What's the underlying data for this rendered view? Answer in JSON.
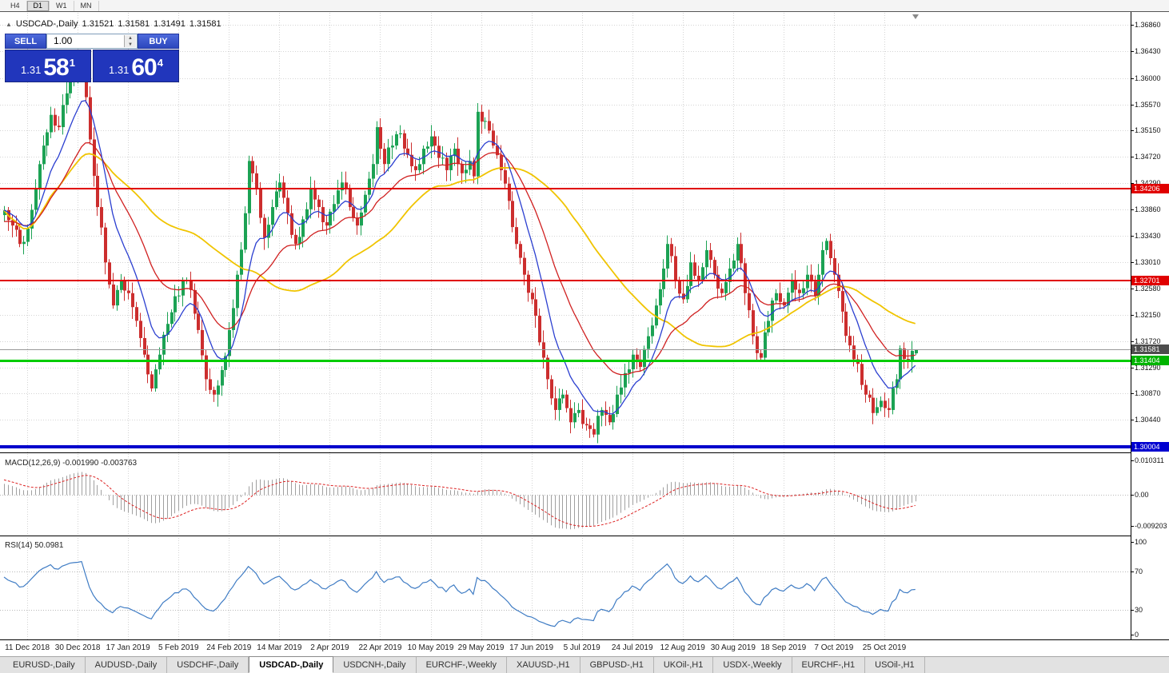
{
  "toolbar": {
    "timeframes": [
      "H4",
      "D1",
      "W1",
      "MN"
    ],
    "active": "D1"
  },
  "chart_header": {
    "collapse_icon": "▲",
    "symbol": "USDCAD-,Daily",
    "open": "1.31521",
    "high": "1.31581",
    "low": "1.31491",
    "close": "1.31581"
  },
  "trade_panel": {
    "sell_label": "SELL",
    "buy_label": "BUY",
    "volume": "1.00",
    "sell_price": {
      "base": "1.31",
      "big": "58",
      "sup": "1"
    },
    "buy_price": {
      "base": "1.31",
      "big": "60",
      "sup": "4"
    }
  },
  "price_scale": {
    "ticks": [
      "1.36860",
      "1.36430",
      "1.36000",
      "1.35570",
      "1.35150",
      "1.34720",
      "1.34290",
      "1.33860",
      "1.33430",
      "1.33010",
      "1.32580",
      "1.32150",
      "1.31720",
      "1.31290",
      "1.30870",
      "1.30440"
    ],
    "badges": [
      {
        "text": "1.34206",
        "value": 1.34206,
        "bg": "#e00000",
        "fg": "#ffffff"
      },
      {
        "text": "1.32701",
        "value": 1.32701,
        "bg": "#e00000",
        "fg": "#ffffff"
      },
      {
        "text": "1.31581",
        "value": 1.31581,
        "bg": "#4d4d4d",
        "fg": "#ffffff"
      },
      {
        "text": "1.31404",
        "value": 1.31404,
        "bg": "#00b400",
        "fg": "#ffffff"
      },
      {
        "text": "1.30004",
        "value": 1.30004,
        "bg": "#0000d0",
        "fg": "#ffffff"
      }
    ]
  },
  "macd": {
    "label": "MACD(12,26,9) -0.001990 -0.003763",
    "params": [
      12,
      26,
      9
    ],
    "value": "-0.001990",
    "signal_value": "-0.003763",
    "axis": [
      {
        "text": "0.010311",
        "value": 0.010311
      },
      {
        "text": "0.00",
        "value": 0
      },
      {
        "text": "-0.009203",
        "value": -0.009203
      }
    ]
  },
  "rsi": {
    "label": "RSI(14) 50.0981",
    "period": 14,
    "value": "50.0981",
    "levels": [
      70,
      30
    ],
    "axis": [
      {
        "text": "100",
        "value": 100
      },
      {
        "text": "70",
        "value": 70
      },
      {
        "text": "30",
        "value": 30
      },
      {
        "text": "0",
        "value": 0
      }
    ]
  },
  "chart_data": {
    "type": "candlestick",
    "symbol": "USDCAD",
    "timeframe": "Daily",
    "ohlc_display": {
      "open": 1.31521,
      "high": 1.31581,
      "low": 1.31491,
      "close": 1.31581
    },
    "y_range": [
      1.2991,
      1.3706
    ],
    "y_ticks": [
      1.3686,
      1.3643,
      1.36,
      1.3557,
      1.3515,
      1.3472,
      1.3429,
      1.3386,
      1.3343,
      1.3301,
      1.3258,
      1.3215,
      1.3172,
      1.3129,
      1.3087,
      1.3044
    ],
    "candle_count": 236,
    "price_anchors": [
      [
        0,
        1.3385
      ],
      [
        2,
        1.336
      ],
      [
        4,
        1.333
      ],
      [
        6,
        1.3355
      ],
      [
        8,
        1.342
      ],
      [
        10,
        1.349
      ],
      [
        12,
        1.354
      ],
      [
        14,
        1.352
      ],
      [
        16,
        1.3575
      ],
      [
        18,
        1.3605
      ],
      [
        20,
        1.362
      ],
      [
        22,
        1.35
      ],
      [
        24,
        1.339
      ],
      [
        26,
        1.33
      ],
      [
        28,
        1.323
      ],
      [
        30,
        1.327
      ],
      [
        32,
        1.325
      ],
      [
        34,
        1.3205
      ],
      [
        36,
        1.315
      ],
      [
        38,
        1.3095
      ],
      [
        40,
        1.315
      ],
      [
        42,
        1.32
      ],
      [
        44,
        1.3245
      ],
      [
        46,
        1.327
      ],
      [
        48,
        1.3255
      ],
      [
        50,
        1.319
      ],
      [
        52,
        1.311
      ],
      [
        54,
        1.3085
      ],
      [
        56,
        1.3125
      ],
      [
        58,
        1.319
      ],
      [
        60,
        1.328
      ],
      [
        62,
        1.338
      ],
      [
        63,
        1.3465
      ],
      [
        65,
        1.342
      ],
      [
        67,
        1.334
      ],
      [
        69,
        1.339
      ],
      [
        71,
        1.343
      ],
      [
        73,
        1.338
      ],
      [
        75,
        1.333
      ],
      [
        77,
        1.337
      ],
      [
        79,
        1.342
      ],
      [
        81,
        1.339
      ],
      [
        83,
        1.336
      ],
      [
        85,
        1.3395
      ],
      [
        87,
        1.343
      ],
      [
        89,
        1.339
      ],
      [
        91,
        1.336
      ],
      [
        93,
        1.341
      ],
      [
        95,
        1.346
      ],
      [
        96,
        1.352
      ],
      [
        98,
        1.346
      ],
      [
        100,
        1.349
      ],
      [
        102,
        1.351
      ],
      [
        104,
        1.3475
      ],
      [
        106,
        1.345
      ],
      [
        108,
        1.3485
      ],
      [
        110,
        1.3505
      ],
      [
        112,
        1.347
      ],
      [
        114,
        1.345
      ],
      [
        116,
        1.3485
      ],
      [
        118,
        1.3445
      ],
      [
        120,
        1.3465
      ],
      [
        121,
        1.344
      ],
      [
        122,
        1.3545
      ],
      [
        124,
        1.353
      ],
      [
        126,
        1.349
      ],
      [
        128,
        1.345
      ],
      [
        130,
        1.34
      ],
      [
        132,
        1.333
      ],
      [
        134,
        1.328
      ],
      [
        136,
        1.324
      ],
      [
        138,
        1.317
      ],
      [
        140,
        1.311
      ],
      [
        142,
        1.306
      ],
      [
        144,
        1.3085
      ],
      [
        146,
        1.304
      ],
      [
        148,
        1.306
      ],
      [
        150,
        1.3035
      ],
      [
        152,
        1.302
      ],
      [
        154,
        1.306
      ],
      [
        156,
        1.304
      ],
      [
        158,
        1.3085
      ],
      [
        160,
        1.312
      ],
      [
        162,
        1.315
      ],
      [
        164,
        1.313
      ],
      [
        166,
        1.318
      ],
      [
        168,
        1.323
      ],
      [
        170,
        1.329
      ],
      [
        171,
        1.333
      ],
      [
        173,
        1.327
      ],
      [
        175,
        1.324
      ],
      [
        177,
        1.33
      ],
      [
        179,
        1.327
      ],
      [
        181,
        1.332
      ],
      [
        183,
        1.328
      ],
      [
        185,
        1.325
      ],
      [
        187,
        1.329
      ],
      [
        189,
        1.333
      ],
      [
        191,
        1.325
      ],
      [
        193,
        1.318
      ],
      [
        195,
        1.3145
      ],
      [
        197,
        1.3205
      ],
      [
        199,
        1.325
      ],
      [
        201,
        1.323
      ],
      [
        203,
        1.327
      ],
      [
        205,
        1.325
      ],
      [
        207,
        1.328
      ],
      [
        209,
        1.3245
      ],
      [
        211,
        1.332
      ],
      [
        212,
        1.3335
      ],
      [
        214,
        1.328
      ],
      [
        216,
        1.322
      ],
      [
        218,
        1.3165
      ],
      [
        220,
        1.3135
      ],
      [
        222,
        1.3085
      ],
      [
        224,
        1.3055
      ],
      [
        226,
        1.3075
      ],
      [
        228,
        1.306
      ],
      [
        230,
        1.311
      ],
      [
        231,
        1.316
      ],
      [
        233,
        1.314
      ],
      [
        235,
        1.31581
      ]
    ],
    "last_candle": {
      "open": 1.31521,
      "high": 1.31581,
      "low": 1.31491,
      "close": 1.31581
    },
    "hlines": [
      {
        "price": 1.34206,
        "color": "#e00000",
        "width": 2
      },
      {
        "price": 1.32701,
        "color": "#e00000",
        "width": 2
      },
      {
        "price": 1.31404,
        "color": "#00cc00",
        "width": 3
      },
      {
        "price": 1.30004,
        "color": "#0000cc",
        "width": 4
      },
      {
        "price": 1.31581,
        "color": "#999999",
        "width": 1
      }
    ],
    "x_labels": [
      {
        "index": 6,
        "text": "11 Dec 2018"
      },
      {
        "index": 19,
        "text": "30 Dec 2018"
      },
      {
        "index": 32,
        "text": "17 Jan 2019"
      },
      {
        "index": 45,
        "text": "5 Feb 2019"
      },
      {
        "index": 58,
        "text": "24 Feb 2019"
      },
      {
        "index": 71,
        "text": "14 Mar 2019"
      },
      {
        "index": 84,
        "text": "2 Apr 2019"
      },
      {
        "index": 97,
        "text": "22 Apr 2019"
      },
      {
        "index": 110,
        "text": "10 May 2019"
      },
      {
        "index": 123,
        "text": "29 May 2019"
      },
      {
        "index": 136,
        "text": "17 Jun 2019"
      },
      {
        "index": 149,
        "text": "5 Jul 2019"
      },
      {
        "index": 162,
        "text": "24 Jul 2019"
      },
      {
        "index": 175,
        "text": "12 Aug 2019"
      },
      {
        "index": 188,
        "text": "30 Aug 2019"
      },
      {
        "index": 201,
        "text": "18 Sep 2019"
      },
      {
        "index": 214,
        "text": "7 Oct 2019"
      },
      {
        "index": 227,
        "text": "25 Oct 2019"
      }
    ],
    "ma_lines": [
      {
        "type": "ema",
        "period": 10,
        "color": "#2b3fd0"
      },
      {
        "type": "ema",
        "period": 25,
        "color": "#d02020"
      },
      {
        "type": "sma",
        "period": 50,
        "color": "#f0c400"
      }
    ],
    "colors": {
      "up": "#1ca254",
      "down": "#cc2e2e",
      "macd_hist": "#a0a0a0",
      "macd_signal": "#dd2222",
      "rsi_line": "#3f7cc4",
      "grid": "#d4d4d4"
    }
  },
  "tabs": [
    {
      "label": "EURUSD-,Daily",
      "active": false
    },
    {
      "label": "AUDUSD-,Daily",
      "active": false
    },
    {
      "label": "USDCHF-,Daily",
      "active": false
    },
    {
      "label": "USDCAD-,Daily",
      "active": true
    },
    {
      "label": "USDCNH-,Daily",
      "active": false
    },
    {
      "label": "EURCHF-,Weekly",
      "active": false
    },
    {
      "label": "XAUUSD-,H1",
      "active": false
    },
    {
      "label": "GBPUSD-,H1",
      "active": false
    },
    {
      "label": "UKOil-,H1",
      "active": false
    },
    {
      "label": "USDX-,Weekly",
      "active": false
    },
    {
      "label": "EURCHF-,H1",
      "active": false
    },
    {
      "label": "USOil-,H1",
      "active": false
    }
  ]
}
